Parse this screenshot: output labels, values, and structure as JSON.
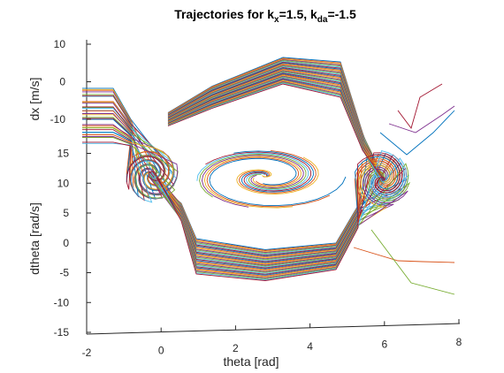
{
  "chart_data": {
    "type": "line",
    "projection": "3d",
    "title": {
      "prefix": "Trajectories for k",
      "sub1": "x",
      "mid": "=1.5, k",
      "sub2": "da",
      "suffix": "=-1.5"
    },
    "xlabel": "theta [rad]",
    "ylabel": "dtheta [rad/s]",
    "zlabel": "dx [m/s]",
    "x_ticks": [
      -2,
      0,
      2,
      4,
      6,
      8
    ],
    "y_ticks": [
      -15,
      -10,
      -5,
      0,
      5,
      10,
      15
    ],
    "z_ticks": [
      -10,
      0,
      10
    ],
    "xlim": [
      -2,
      8
    ],
    "ylim": [
      -15,
      15
    ],
    "zlim": [
      -10,
      10
    ],
    "grid": false,
    "series_count": 35,
    "colors": [
      "#0072BD",
      "#D95319",
      "#EDB120",
      "#7E2F8E",
      "#77AC30",
      "#4DBEEE",
      "#A2142F"
    ]
  }
}
